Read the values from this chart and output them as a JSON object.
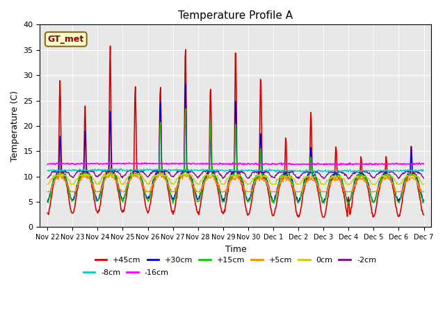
{
  "title": "Temperature Profile A",
  "xlabel": "Time",
  "ylabel": "Temperature (C)",
  "ylim": [
    0,
    40
  ],
  "annotation_text": "GT_met",
  "bg_color": "#e8e8e8",
  "series": [
    {
      "label": "+45cm",
      "color": "#dd0000",
      "lw": 1.2
    },
    {
      "label": "+30cm",
      "color": "#0000dd",
      "lw": 1.0
    },
    {
      "label": "+15cm",
      "color": "#00cc00",
      "lw": 1.0
    },
    {
      "label": "+5cm",
      "color": "#ff8800",
      "lw": 1.0
    },
    {
      "label": "0cm",
      "color": "#cccc00",
      "lw": 1.0
    },
    {
      "label": "-2cm",
      "color": "#880088",
      "lw": 1.0
    },
    {
      "label": "-8cm",
      "color": "#00cccc",
      "lw": 1.0
    },
    {
      "label": "-16cm",
      "color": "#ff00ff",
      "lw": 1.2
    }
  ],
  "x_tick_labels": [
    "Nov 22",
    "Nov 23",
    "Nov 24",
    "Nov 25",
    "Nov 26",
    "Nov 27",
    "Nov 28",
    "Nov 29",
    "Nov 30",
    "Dec 1",
    "Dec 2",
    "Dec 3",
    "Dec 4",
    "Dec 5",
    "Dec 6",
    "Dec 7"
  ],
  "n_points": 720
}
